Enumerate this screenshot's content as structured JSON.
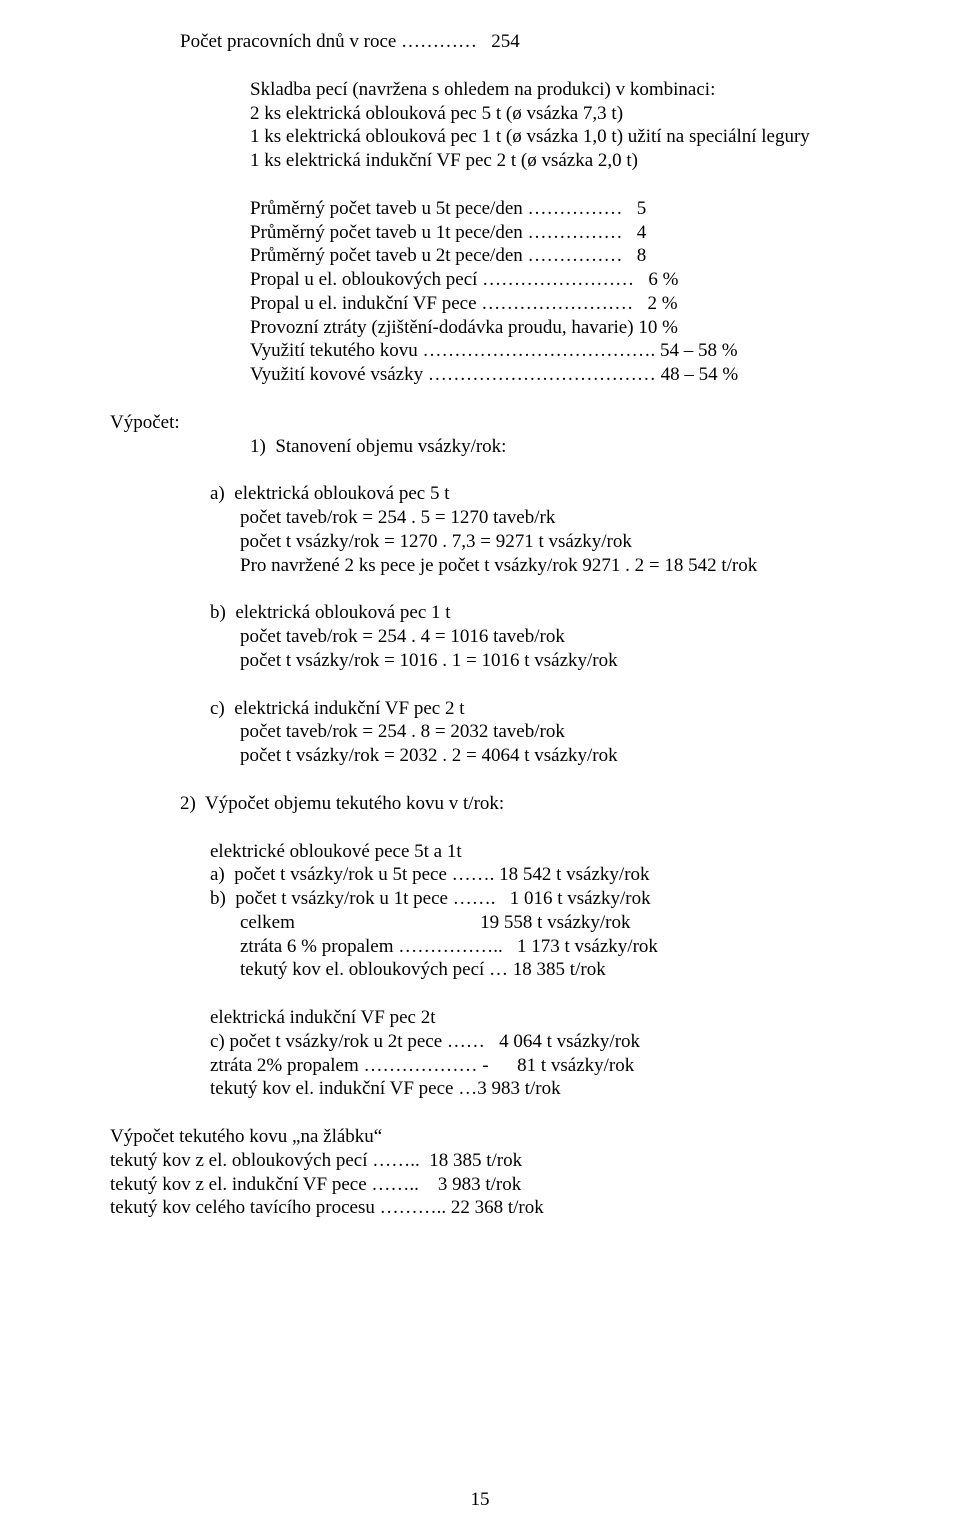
{
  "l1": "Počet pracovních dnů v roce …………   254",
  "l2": "Skladba pecí (navržena s ohledem na produkci) v kombinaci:",
  "l3": "2 ks elektrická oblouková pec 5 t (ø vsázka 7,3 t)",
  "l4": "1 ks elektrická oblouková pec 1 t (ø vsázka 1,0 t) užití na speciální legury",
  "l5": "1 ks elektrická indukční VF pec 2 t (ø vsázka 2,0 t)",
  "l6": "Průměrný počet taveb u 5t pece/den ……………   5",
  "l7": "Průměrný počet taveb u 1t pece/den ……………   4",
  "l8": "Průměrný počet taveb u 2t pece/den ……………   8",
  "l9": "Propal u el. obloukových pecí ……………………   6 %",
  "l10": "Propal u el. indukční VF pece ……………………   2 %",
  "l11": "Provozní ztráty (zjištění-dodávka proudu, havarie) 10 %",
  "l12": "Využití tekutého kovu ………………………………. 54 – 58 %",
  "l13": "Využití kovové vsázky ……………………………… 48 – 54 %",
  "vypocet": "Výpočet:",
  "s1": "1)  Stanovení objemu vsázky/rok:",
  "a_h": "a)  elektrická oblouková pec 5 t",
  "a_1": "počet taveb/rok = 254 . 5 = 1270 taveb/rk",
  "a_2": "počet t vsázky/rok = 1270 . 7,3 = 9271 t vsázky/rok",
  "a_3": "Pro navržené 2 ks pece je počet t vsázky/rok 9271 . 2 = 18 542 t/rok",
  "b_h": "b)  elektrická oblouková pec 1 t",
  "b_1": "počet taveb/rok = 254 . 4 = 1016 taveb/rok",
  "b_2": "počet t vsázky/rok = 1016 . 1 = 1016 t vsázky/rok",
  "c_h": "c)  elektrická indukční VF pec 2 t",
  "c_1": "počet taveb/rok = 254 . 8 = 2032 taveb/rok",
  "c_2": "počet t vsázky/rok = 2032 . 2 = 4064 t vsázky/rok",
  "s2": "2)  Výpočet objemu tekutého kovu v t/rok:",
  "blk1_h": "elektrické obloukové pece 5t a 1t",
  "blk1_a": "a)  počet t vsázky/rok u 5t pece ……. 18 542 t vsázky/rok",
  "blk1_b": "b)  počet t vsázky/rok u 1t pece …….   1 016 t vsázky/rok",
  "blk1_c": "celkem                                       19 558 t vsázky/rok",
  "blk1_d": "ztráta 6 % propalem ……………..   1 173 t vsázky/rok",
  "blk1_e": "tekutý kov el. obloukových pecí … 18 385 t/rok",
  "blk2_h": "elektrická indukční VF pec 2t",
  "blk2_a": "c) počet t vsázky/rok u 2t pece ……   4 064 t vsázky/rok",
  "blk2_b": "ztráta 2% propalem ……………… -      81 t vsázky/rok",
  "blk2_c": "tekutý kov el. indukční VF pece …3 983 t/rok",
  "f1": "Výpočet tekutého kovu „na žlábku“",
  "f2": "tekutý kov z el. obloukových pecí ……..  18 385 t/rok",
  "f3": "tekutý kov z el. indukční VF pece ……..    3 983 t/rok",
  "f4": "tekutý kov celého tavícího procesu ……….. 22 368 t/rok",
  "pagenum": "15"
}
